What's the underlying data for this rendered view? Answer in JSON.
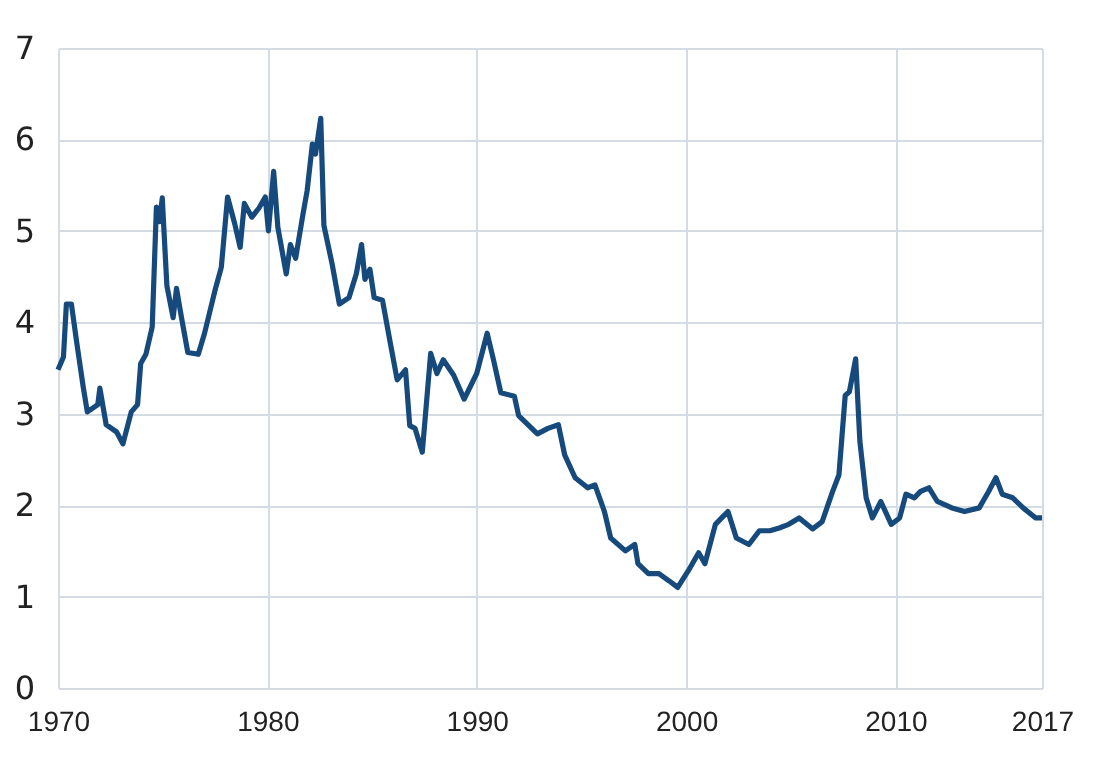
{
  "chart_data": {
    "type": "line",
    "grid": true,
    "xlim": [
      1970,
      2017
    ],
    "ylim": [
      0,
      7
    ],
    "xticks": [
      1970,
      1980,
      1990,
      2000,
      2010,
      2017
    ],
    "yticks": [
      0,
      1,
      2,
      3,
      4,
      5,
      6,
      7
    ],
    "x": [
      1970.0,
      1970.26,
      1970.4,
      1970.64,
      1970.9,
      1971.2,
      1971.4,
      1971.9,
      1972.0,
      1972.3,
      1972.8,
      1973.1,
      1973.5,
      1973.8,
      1973.95,
      1974.2,
      1974.5,
      1974.7,
      1974.85,
      1974.98,
      1975.2,
      1975.5,
      1975.66,
      1975.9,
      1976.2,
      1976.7,
      1977.0,
      1977.5,
      1977.8,
      1978.1,
      1978.45,
      1978.7,
      1978.9,
      1979.26,
      1979.6,
      1979.9,
      1980.05,
      1980.3,
      1980.5,
      1980.9,
      1981.1,
      1981.35,
      1981.7,
      1981.9,
      1982.15,
      1982.3,
      1982.55,
      1982.7,
      1983.1,
      1983.44,
      1983.9,
      1984.25,
      1984.5,
      1984.66,
      1984.9,
      1985.1,
      1985.5,
      1985.85,
      1986.2,
      1986.6,
      1986.8,
      1987.05,
      1987.4,
      1987.8,
      1988.1,
      1988.4,
      1988.9,
      1989.4,
      1990.0,
      1990.5,
      1990.8,
      1991.15,
      1991.8,
      1992.0,
      1992.9,
      1993.4,
      1993.9,
      1994.2,
      1994.7,
      1995.3,
      1995.65,
      1996.1,
      1996.4,
      1997.1,
      1997.55,
      1997.7,
      1998.2,
      1998.7,
      1999.2,
      1999.6,
      2000.1,
      2000.6,
      2000.9,
      2001.4,
      2001.7,
      2002.0,
      2002.4,
      2003.0,
      2003.5,
      2004.0,
      2004.45,
      2004.9,
      2005.4,
      2006.05,
      2006.5,
      2007.0,
      2007.3,
      2007.6,
      2007.8,
      2008.1,
      2008.3,
      2008.6,
      2008.9,
      2009.3,
      2009.8,
      2010.2,
      2010.5,
      2010.9,
      2011.2,
      2011.6,
      2012.0,
      2012.7,
      2013.3,
      2014.0,
      2014.45,
      2014.8,
      2015.1,
      2015.6,
      2016.1,
      2016.7,
      2017.0
    ],
    "series": [
      {
        "color": "#164a7c",
        "values": [
          3.48,
          3.62,
          4.2,
          4.2,
          3.77,
          3.3,
          3.02,
          3.1,
          3.28,
          2.88,
          2.8,
          2.67,
          3.02,
          3.1,
          3.55,
          3.65,
          3.95,
          5.26,
          5.1,
          5.36,
          4.4,
          4.05,
          4.37,
          4.05,
          3.67,
          3.65,
          3.88,
          4.35,
          4.6,
          5.37,
          5.07,
          4.82,
          5.3,
          5.15,
          5.25,
          5.37,
          5.0,
          5.65,
          5.04,
          4.53,
          4.85,
          4.7,
          5.18,
          5.44,
          5.95,
          5.84,
          6.23,
          5.06,
          4.63,
          4.2,
          4.27,
          4.53,
          4.85,
          4.47,
          4.58,
          4.27,
          4.24,
          3.8,
          3.37,
          3.48,
          2.87,
          2.84,
          2.58,
          3.66,
          3.44,
          3.59,
          3.42,
          3.16,
          3.44,
          3.88,
          3.59,
          3.23,
          3.19,
          2.98,
          2.78,
          2.84,
          2.88,
          2.55,
          2.3,
          2.19,
          2.22,
          1.93,
          1.64,
          1.5,
          1.57,
          1.36,
          1.25,
          1.25,
          1.17,
          1.1,
          1.28,
          1.48,
          1.36,
          1.79,
          1.86,
          1.93,
          1.64,
          1.57,
          1.72,
          1.72,
          1.75,
          1.79,
          1.86,
          1.74,
          1.82,
          2.15,
          2.33,
          3.2,
          3.24,
          3.6,
          2.7,
          2.08,
          1.86,
          2.04,
          1.79,
          1.86,
          2.12,
          2.08,
          2.15,
          2.19,
          2.04,
          1.97,
          1.93,
          1.97,
          2.15,
          2.3,
          2.12,
          2.08,
          1.97,
          1.86,
          1.86
        ]
      }
    ]
  }
}
